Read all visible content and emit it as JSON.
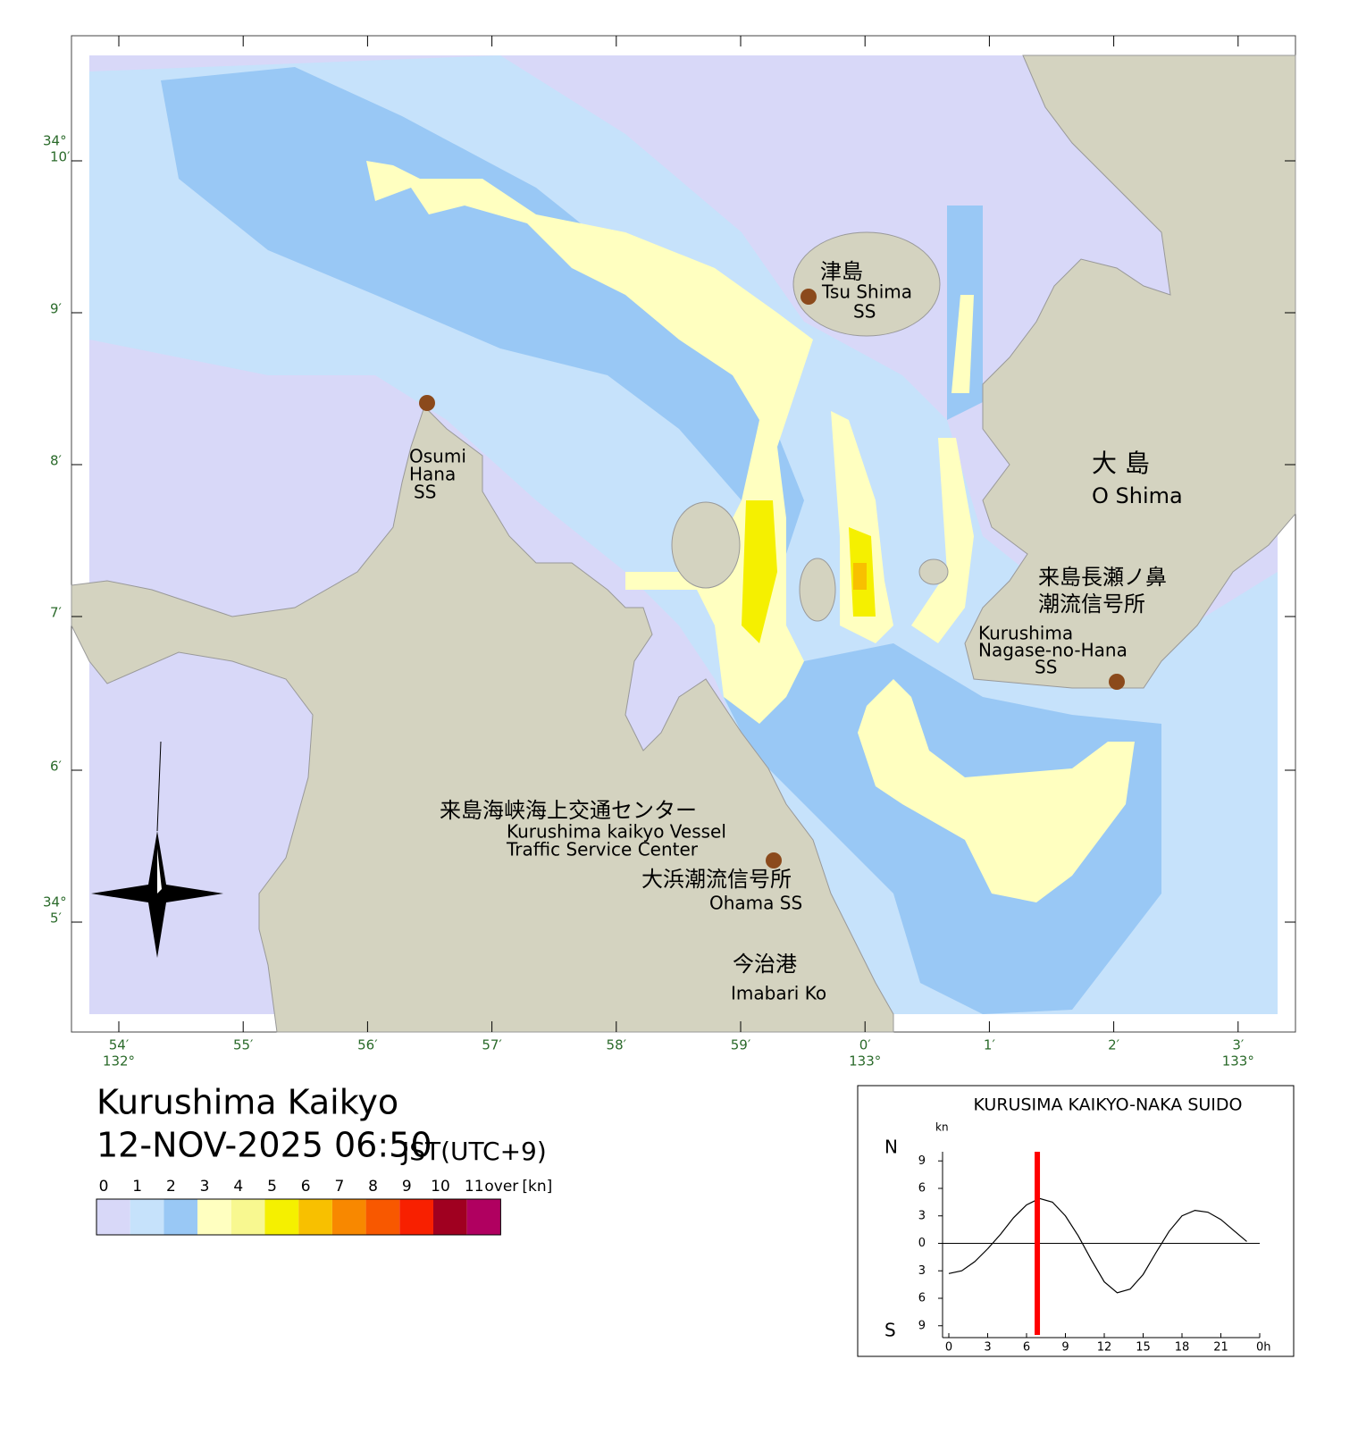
{
  "map": {
    "title": "Kurushima Kaikyo",
    "datetime": "12-NOV-2025 06:50",
    "timezone": "JST(UTC+9)",
    "lat_labels": [
      {
        "degree": "34°",
        "minute": "10′"
      },
      {
        "minute": "9′"
      },
      {
        "minute": "8′"
      },
      {
        "minute": "7′"
      },
      {
        "minute": "6′"
      },
      {
        "degree": "34°",
        "minute": "5′"
      }
    ],
    "lon_labels": [
      {
        "minute": "54′",
        "degree": "132°"
      },
      {
        "minute": "55′"
      },
      {
        "minute": "56′"
      },
      {
        "minute": "57′"
      },
      {
        "minute": "58′"
      },
      {
        "minute": "59′"
      },
      {
        "minute": "0′",
        "degree": "133°"
      },
      {
        "minute": "1′"
      },
      {
        "minute": "2′"
      },
      {
        "minute": "3′",
        "degree": "133°"
      }
    ],
    "places": {
      "tsu_shima": [
        "津島",
        "Tsu Shima",
        "SS"
      ],
      "osumi_hana": [
        "Osumi",
        "Hana",
        "SS"
      ],
      "o_shima": [
        "大 島",
        "O Shima"
      ],
      "nagase": [
        "来島長瀬ノ鼻",
        "潮流信号所",
        "Kurushima",
        "Nagase-no-Hana",
        "SS"
      ],
      "vts": [
        "来島海峡海上交通センター",
        "Kurushima kaikyo Vessel",
        "Traffic Service Center"
      ],
      "ohama": [
        "大浜潮流信号所",
        "Ohama SS"
      ],
      "imabari": [
        "今治港",
        "Imabari Ko"
      ]
    }
  },
  "legend": {
    "labels": [
      0,
      1,
      2,
      3,
      4,
      5,
      6,
      7,
      8,
      9,
      10,
      11
    ],
    "over": "over",
    "unit": "[kn]",
    "colors": [
      "#d8d8f8",
      "#c6e2fb",
      "#99c8f5",
      "#ffffc0",
      "#f8f890",
      "#f5f000",
      "#f8c000",
      "#f88800",
      "#f85800",
      "#f82000",
      "#a00020",
      "#b00060"
    ]
  },
  "tide_chart": {
    "type": "line",
    "title": "KURUSIMA KAIKYO-NAKA SUIDO",
    "unit": "kn",
    "north": "N",
    "south": "S",
    "x": [
      0,
      1,
      2,
      3,
      4,
      5,
      6,
      7,
      8,
      9,
      10,
      11,
      12,
      13,
      14,
      15,
      16,
      17,
      18,
      19,
      20,
      21,
      22,
      23
    ],
    "values": [
      -3.3,
      -3.0,
      -2.0,
      -0.6,
      1.0,
      2.8,
      4.2,
      4.9,
      4.5,
      3.0,
      0.8,
      -1.8,
      -4.2,
      -5.4,
      -5.0,
      -3.4,
      -1.0,
      1.3,
      3.0,
      3.6,
      3.4,
      2.6,
      1.4,
      0.2
    ],
    "color": "#000000",
    "now": 6.83,
    "now_color": "#ff0000",
    "xlim": [
      0,
      24
    ],
    "ylim": [
      -10,
      10
    ],
    "xticks": [
      0,
      3,
      6,
      9,
      12,
      15,
      18,
      21,
      {
        "value": 24,
        "label": "0h"
      }
    ],
    "yticks": [
      9,
      6,
      3,
      0,
      {
        "value": -3,
        "label": "3"
      },
      {
        "value": -6,
        "label": "6"
      },
      {
        "value": -9,
        "label": "9"
      }
    ]
  }
}
